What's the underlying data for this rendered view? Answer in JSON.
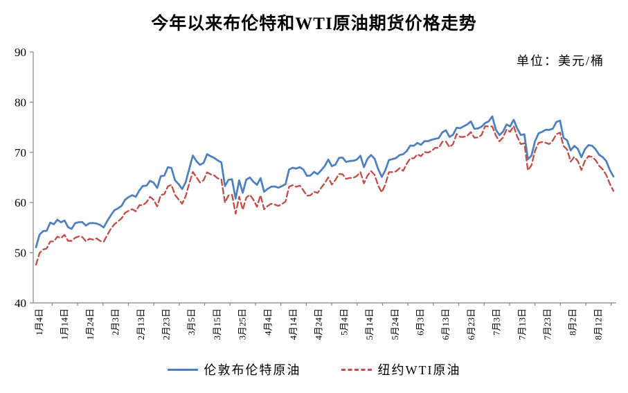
{
  "chart_data": {
    "type": "line",
    "title": "今年以来布伦特和WTI原油期货价格走势",
    "units_label": "单位：美元/桶",
    "ylim": [
      40,
      90
    ],
    "y_ticks": [
      40,
      50,
      60,
      70,
      80,
      90
    ],
    "grid": false,
    "legend_position": "bottom",
    "axis_color": "#808080",
    "x_tick_labels": [
      "1月4日",
      "1月14日",
      "1月24日",
      "2月3日",
      "2月13日",
      "2月23日",
      "3月5日",
      "3月15日",
      "3月25日",
      "4月4日",
      "4月14日",
      "4月24日",
      "5月4日",
      "5月14日",
      "5月24日",
      "6月3日",
      "6月13日",
      "6月23日",
      "7月3日",
      "7月13日",
      "7月23日",
      "8月2日",
      "8月12日"
    ],
    "series": [
      {
        "name": "伦敦布伦特原油",
        "color": "#4F81BD",
        "style": "solid",
        "values": [
          51.09,
          53.6,
          54.3,
          54.38,
          55.99,
          55.66,
          56.58,
          56.06,
          56.42,
          55.1,
          54.75,
          55.9,
          56.08,
          56.1,
          55.41,
          55.88,
          55.91,
          55.81,
          55.53,
          55.04,
          56.35,
          57.46,
          58.46,
          58.84,
          59.34,
          60.56,
          61.09,
          61.47,
          61.14,
          62.43,
          63.3,
          63.35,
          64.34,
          63.93,
          62.91,
          65.24,
          65.37,
          67.04,
          66.88,
          64.42,
          63.69,
          62.7,
          64.07,
          66.74,
          69.36,
          68.24,
          67.52,
          67.9,
          69.63,
          69.22,
          68.88,
          68.39,
          68.0,
          63.28,
          64.53,
          64.62,
          60.79,
          64.41,
          61.95,
          64.57,
          64.98,
          64.14,
          63.54,
          64.86,
          62.15,
          62.74,
          63.16,
          63.2,
          62.95,
          63.28,
          63.67,
          66.58,
          66.94,
          66.77,
          67.05,
          66.57,
          65.32,
          65.4,
          66.11,
          65.65,
          66.42,
          67.27,
          68.56,
          67.25,
          67.56,
          68.88,
          68.96,
          68.09,
          68.28,
          68.32,
          68.55,
          69.32,
          67.05,
          68.71,
          69.46,
          68.71,
          66.66,
          65.11,
          66.44,
          68.46,
          68.65,
          68.87,
          69.46,
          69.63,
          70.25,
          71.35,
          71.31,
          71.89,
          71.49,
          72.22,
          72.22,
          72.52,
          72.69,
          72.86,
          73.99,
          74.39,
          73.08,
          73.51,
          74.9,
          74.81,
          75.19,
          75.56,
          76.18,
          74.68,
          74.76,
          75.13,
          75.84,
          76.17,
          77.16,
          74.53,
          73.43,
          74.12,
          75.55,
          75.16,
          76.49,
          74.76,
          73.47,
          73.59,
          68.62,
          69.35,
          72.23,
          73.79,
          74.1,
          74.5,
          74.48,
          74.74,
          76.05,
          76.33,
          72.89,
          72.41,
          70.38,
          71.29,
          70.7,
          69.04,
          70.63,
          71.44,
          71.31,
          70.59,
          69.51,
          69.03,
          68.23,
          66.45,
          65.18
        ]
      },
      {
        "name": "纽约WTI原油",
        "color": "#C0504D",
        "style": "dashed",
        "values": [
          47.62,
          49.93,
          50.63,
          50.83,
          52.24,
          52.25,
          53.21,
          52.91,
          53.57,
          52.36,
          52.36,
          52.98,
          53.24,
          53.13,
          52.27,
          52.77,
          52.61,
          52.85,
          52.34,
          52.2,
          53.55,
          54.76,
          55.69,
          56.23,
          56.85,
          57.97,
          58.36,
          58.68,
          58.24,
          59.47,
          59.47,
          60.05,
          61.14,
          60.52,
          59.24,
          61.49,
          61.67,
          63.22,
          63.53,
          61.5,
          60.64,
          59.75,
          61.28,
          63.83,
          66.09,
          65.05,
          64.01,
          64.44,
          66.02,
          65.61,
          65.39,
          64.8,
          64.6,
          60.0,
          61.42,
          61.56,
          57.76,
          61.18,
          58.56,
          60.97,
          61.56,
          60.55,
          59.16,
          61.45,
          58.65,
          59.33,
          59.77,
          59.6,
          59.32,
          59.7,
          60.18,
          63.15,
          63.46,
          63.13,
          63.38,
          62.44,
          61.35,
          61.43,
          62.14,
          61.91,
          62.94,
          63.86,
          65.01,
          63.58,
          64.49,
          65.69,
          65.63,
          64.71,
          64.9,
          64.92,
          65.28,
          66.08,
          63.82,
          65.37,
          66.27,
          65.49,
          63.36,
          62.05,
          63.58,
          66.05,
          66.07,
          66.21,
          66.85,
          66.32,
          67.72,
          68.83,
          68.81,
          69.62,
          69.23,
          70.05,
          69.96,
          70.29,
          70.91,
          70.88,
          72.12,
          72.15,
          71.04,
          71.64,
          73.66,
          73.06,
          73.08,
          73.3,
          74.05,
          72.91,
          72.98,
          73.47,
          75.23,
          75.16,
          75.16,
          73.37,
          72.2,
          72.94,
          74.56,
          74.1,
          75.25,
          73.13,
          71.65,
          71.81,
          66.42,
          67.42,
          70.3,
          71.91,
          72.07,
          71.91,
          71.65,
          72.39,
          73.62,
          73.95,
          71.26,
          70.56,
          68.15,
          69.09,
          68.28,
          66.48,
          68.29,
          69.25,
          69.09,
          68.44,
          67.29,
          66.59,
          65.46,
          63.69,
          62.32
        ]
      }
    ]
  }
}
